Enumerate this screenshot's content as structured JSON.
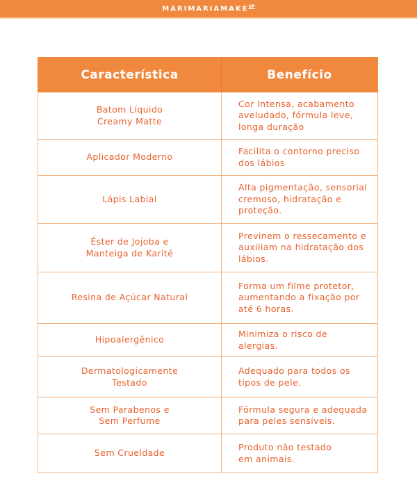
{
  "header": {
    "logo": "MARIMARIAMAKE",
    "logo_sup": "UP",
    "brand_color": "#F0883E"
  },
  "table": {
    "columns": [
      "Característica",
      "Benefício"
    ],
    "rows": [
      {
        "feature": "Batom Líquido\nCreamy Matte",
        "benefit": "Cor Intensa, acabamento aveludado, fórmula leve, longa duração"
      },
      {
        "feature": "Aplicador Moderno",
        "benefit": "Facilita o contorno preciso dos lábios"
      },
      {
        "feature": "Lápis Labial",
        "benefit": "Alta pigmentação, sensorial cremoso, hidratação e proteção."
      },
      {
        "feature": "Éster de Jojoba e\nManteiga de Karité",
        "benefit": "Previnem o ressecamento e auxiliam na hidratação dos lábios."
      },
      {
        "feature": "Resina de Açúcar Natural",
        "benefit": "Forma um filme protetor, aumentando a fixação por até 6 horas."
      },
      {
        "feature": "Hipoalergênico",
        "benefit": "Minimiza o risco de alergias."
      },
      {
        "feature": "Dermatologicamente\nTestado",
        "benefit": "Adequado para todos os tipos de pele."
      },
      {
        "feature": "Sem Parabenos e\nSem Perfume",
        "benefit": "Fórmula segura e adequada para peles sensíveis."
      },
      {
        "feature": "Sem Crueldade",
        "benefit": "Produto não testado\nem animais."
      }
    ]
  }
}
